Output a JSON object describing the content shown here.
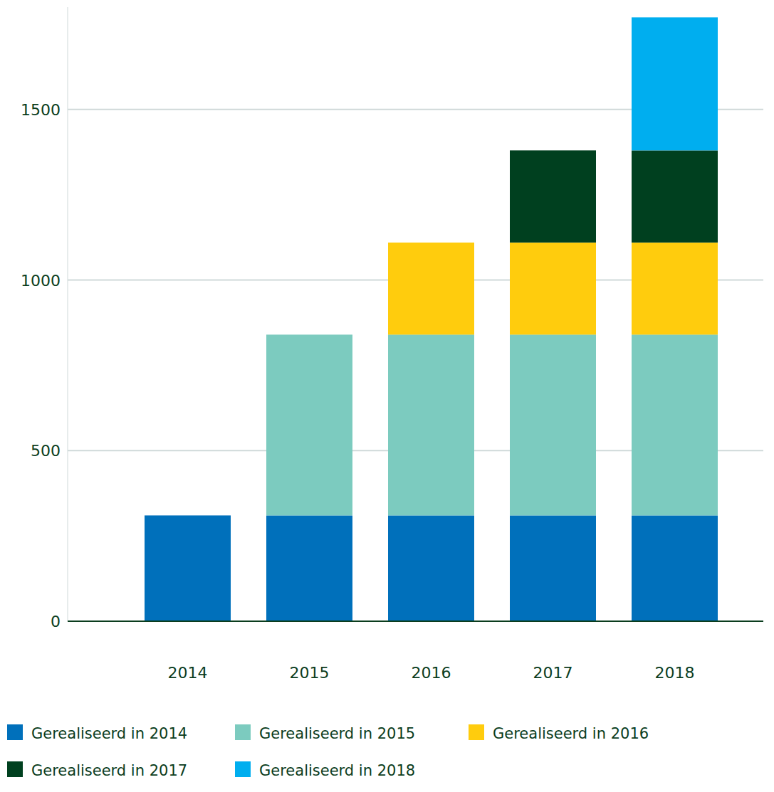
{
  "chart_data": {
    "type": "bar",
    "stacked": true,
    "grid": true,
    "legend": "bottom",
    "categories": [
      "2014",
      "2015",
      "2016",
      "2017",
      "2018"
    ],
    "series": [
      {
        "name": "Gerealiseerd in 2014",
        "color": "#0070bb",
        "values": [
          310,
          310,
          310,
          310,
          310
        ]
      },
      {
        "name": "Gerealiseerd in 2015",
        "color": "#7ccbbf",
        "values": [
          null,
          530,
          530,
          530,
          530
        ]
      },
      {
        "name": "Gerealiseerd in 2016",
        "color": "#ffcc0d",
        "values": [
          null,
          null,
          270,
          270,
          270
        ]
      },
      {
        "name": "Gerealiseerd in 2017",
        "color": "#00401f",
        "values": [
          null,
          null,
          null,
          270,
          270
        ]
      },
      {
        "name": "Gerealiseerd in 2018",
        "color": "#00aeef",
        "values": [
          null,
          null,
          null,
          null,
          390
        ]
      }
    ],
    "ylim": [
      0,
      1800
    ],
    "yticks": [
      0,
      500,
      1000,
      1500
    ]
  }
}
